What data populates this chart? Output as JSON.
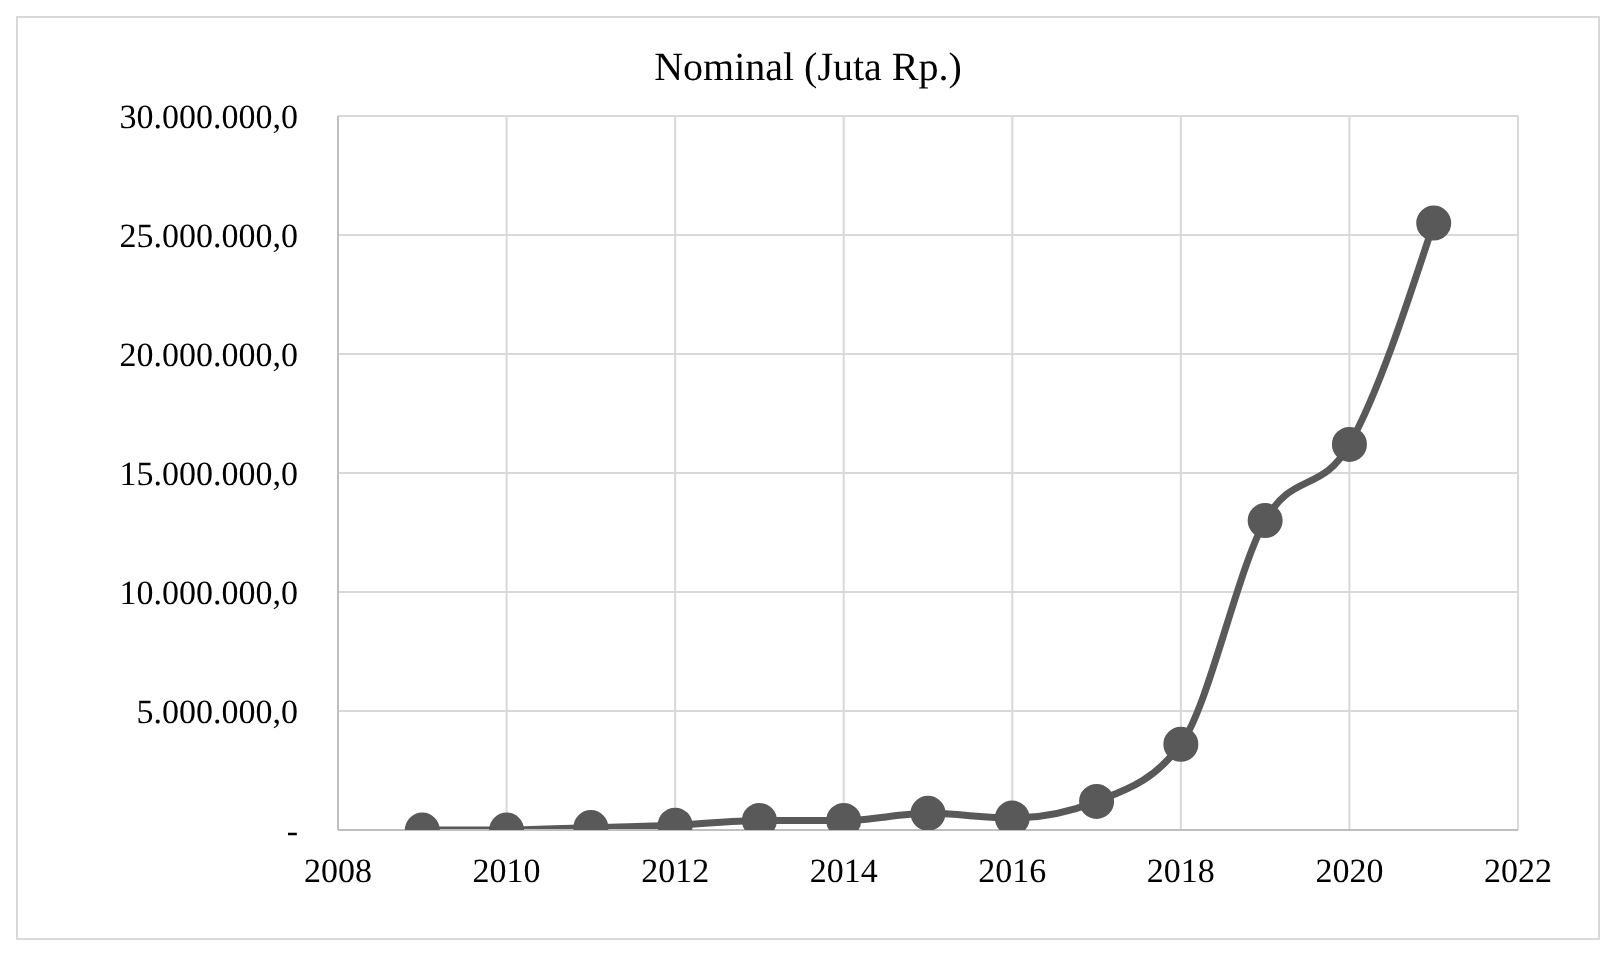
{
  "chart_data": {
    "type": "line",
    "title": "Nominal (Juta Rp.)",
    "x": [
      2009,
      2010,
      2011,
      2012,
      2013,
      2014,
      2015,
      2016,
      2017,
      2018,
      2019,
      2020,
      2021
    ],
    "series": [
      {
        "color": "#595959",
        "values": [
          0,
          0,
          100000,
          200000,
          400000,
          400000,
          700000,
          500000,
          1200000,
          3600000,
          13000000,
          16200000,
          25500000
        ]
      }
    ],
    "xlim": [
      2008,
      2022
    ],
    "xticks": [
      2008,
      2010,
      2012,
      2014,
      2016,
      2018,
      2020,
      2022
    ],
    "ylim": [
      0,
      30000000
    ],
    "yticks": [
      {
        "value": 0,
        "label": "-"
      },
      {
        "value": 5000000,
        "label": "5.000.000,0"
      },
      {
        "value": 10000000,
        "label": "10.000.000,0"
      },
      {
        "value": 15000000,
        "label": "15.000.000,0"
      },
      {
        "value": 20000000,
        "label": "20.000.000,0"
      },
      {
        "value": 25000000,
        "label": "25.000.000,0"
      },
      {
        "value": 30000000,
        "label": "30.000.000,0"
      }
    ],
    "grid": true,
    "marker": "circle",
    "line_style": "solid"
  }
}
